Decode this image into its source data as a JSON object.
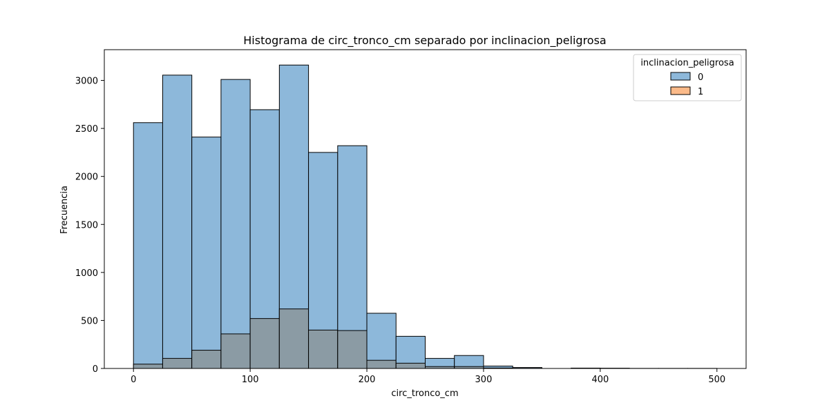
{
  "chart_data": {
    "type": "bar",
    "title": "Histograma de circ_tronco_cm separado por inclinacion_peligrosa",
    "xlabel": "circ_tronco_cm",
    "ylabel": "Frecuencia",
    "xlim": [
      -25,
      525
    ],
    "ylim": [
      0,
      3320
    ],
    "xticks": [
      0,
      100,
      200,
      300,
      400,
      500
    ],
    "yticks": [
      0,
      500,
      1000,
      1500,
      2000,
      2500,
      3000
    ],
    "bin_edges": [
      0,
      25,
      50,
      75,
      100,
      125,
      150,
      175,
      200,
      225,
      250,
      275,
      300,
      325,
      350,
      375,
      400,
      425,
      450,
      475,
      500
    ],
    "grid": false,
    "legend": {
      "title": "inclinacion_peligrosa",
      "placement": "top-right",
      "entries": [
        "0",
        "1"
      ]
    },
    "colors": {
      "series_0_fill": "#8db8da",
      "series_1_fill": "#fbba89",
      "overlap_fill": "#8b9ba4",
      "edge": "#000000"
    },
    "series": [
      {
        "name": "0",
        "values": [
          2560,
          3055,
          2410,
          3010,
          2695,
          3160,
          2250,
          2320,
          575,
          335,
          105,
          135,
          25,
          10,
          0,
          4,
          3,
          1,
          1,
          1
        ]
      },
      {
        "name": "1",
        "values": [
          45,
          105,
          190,
          360,
          520,
          620,
          400,
          395,
          85,
          55,
          20,
          20,
          5,
          2,
          0,
          0,
          0,
          0,
          0,
          0
        ]
      }
    ]
  }
}
